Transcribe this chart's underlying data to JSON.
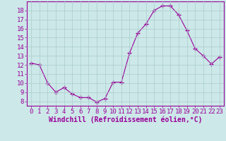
{
  "x": [
    0,
    1,
    2,
    3,
    4,
    5,
    6,
    7,
    8,
    9,
    10,
    11,
    12,
    13,
    14,
    15,
    16,
    17,
    18,
    19,
    20,
    21,
    22,
    23
  ],
  "y": [
    12.2,
    12.0,
    10.0,
    9.0,
    9.5,
    8.8,
    8.4,
    8.4,
    7.9,
    8.3,
    10.1,
    10.1,
    13.3,
    15.5,
    16.5,
    18.0,
    18.5,
    18.5,
    17.5,
    15.8,
    13.8,
    13.0,
    12.1,
    12.9
  ],
  "line_color": "#990099",
  "marker": "+",
  "marker_size": 4,
  "bg_color": "#cce8e8",
  "grid_color": "#aacccc",
  "xlabel": "Windchill (Refroidissement éolien,°C)",
  "xlim": [
    -0.5,
    23.5
  ],
  "ylim": [
    7.5,
    19.0
  ],
  "yticks": [
    8,
    9,
    10,
    11,
    12,
    13,
    14,
    15,
    16,
    17,
    18
  ],
  "xticks": [
    0,
    1,
    2,
    3,
    4,
    5,
    6,
    7,
    8,
    9,
    10,
    11,
    12,
    13,
    14,
    15,
    16,
    17,
    18,
    19,
    20,
    21,
    22,
    23
  ],
  "tick_color": "#990099",
  "label_color": "#990099",
  "axes_color": "#990099",
  "tick_fontsize": 6.5,
  "xlabel_fontsize": 7
}
